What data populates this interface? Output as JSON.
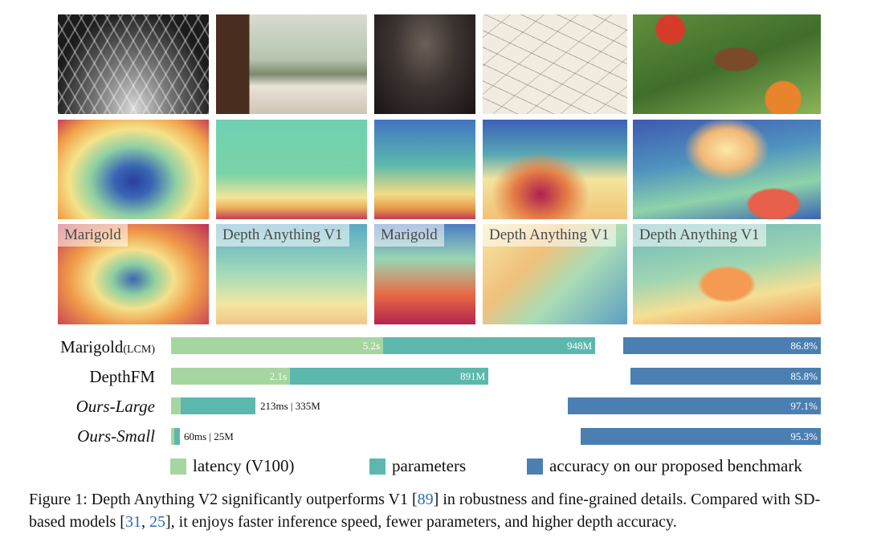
{
  "image_labels": {
    "r3c1": "Marigold",
    "r3c2": "Depth Anything V1",
    "r3c3": "Marigold",
    "r3c4": "Depth Anything V1",
    "r3c5": "Depth Anything V1"
  },
  "chart_data": {
    "type": "bar",
    "categories": [
      "Marigold(LCM)",
      "DepthFM",
      "Ours-Large",
      "Ours-Small"
    ],
    "series": [
      {
        "name": "latency (V100)",
        "labels": [
          "5.2s",
          "2.1s",
          "213ms",
          "60ms"
        ]
      },
      {
        "name": "parameters",
        "labels": [
          "948M",
          "891M",
          "335M",
          "25M"
        ]
      },
      {
        "name": "accuracy on our proposed benchmark",
        "values": [
          86.8,
          85.8,
          97.1,
          95.3
        ],
        "labels": [
          "86.8%",
          "85.8%",
          "97.1%",
          "95.3%"
        ]
      }
    ],
    "outside_labels": [
      "213ms | 335M",
      "60ms | 25M"
    ],
    "colors": {
      "latency": "#a6d6a0",
      "parameters": "#5cb8ad",
      "accuracy": "#4b7fb2"
    }
  },
  "rows": [
    {
      "name": "Marigold",
      "sub": "(LCM)"
    },
    {
      "name": "DepthFM",
      "sub": ""
    },
    {
      "name": "Ours-Large",
      "sub": ""
    },
    {
      "name": "Ours-Small",
      "sub": ""
    }
  ],
  "legend": [
    "latency (V100)",
    "parameters",
    "accuracy on our proposed benchmark"
  ],
  "caption": {
    "prefix": "Figure 1: Depth Anything V2 significantly outperforms V1 [",
    "ref1": "89",
    "mid1": "] in robustness and fine-grained details. Compared with SD-based models [",
    "ref2": "31",
    "sep": ", ",
    "ref3": "25",
    "suffix": "], it enjoys faster inference speed, fewer parameters, and higher depth accuracy."
  }
}
